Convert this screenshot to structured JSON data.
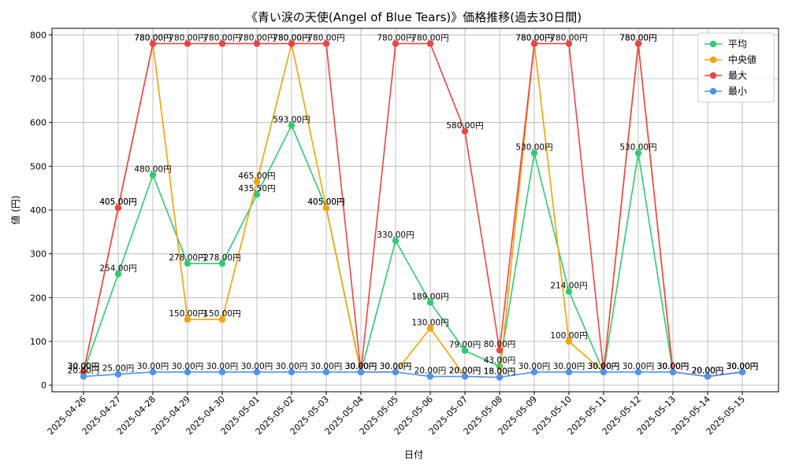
{
  "chart_data": {
    "type": "line",
    "title": "《青い涙の天使(Angel of Blue Tears)》価格推移(過去30日間)",
    "xlabel": "日付",
    "ylabel": "値 (円)",
    "ylim": [
      -15,
      815
    ],
    "yticks": [
      0,
      100,
      200,
      300,
      400,
      500,
      600,
      700,
      800
    ],
    "grid": true,
    "legend_position": "top-right",
    "label_suffix": "円",
    "categories": [
      "2025-04-26",
      "2025-04-27",
      "2025-04-28",
      "2025-04-29",
      "2025-04-30",
      "2025-05-01",
      "2025-05-02",
      "2025-05-03",
      "2025-05-04",
      "2025-05-05",
      "2025-05-06",
      "2025-05-07",
      "2025-05-08",
      "2025-05-09",
      "2025-05-10",
      "2025-05-11",
      "2025-05-12",
      "2025-05-13",
      "2025-05-14",
      "2025-05-15"
    ],
    "series": [
      {
        "name": "平均",
        "color": "#2ecc71",
        "values": [
          30,
          254,
          480,
          278,
          278,
          435.5,
          593,
          405,
          30,
          330,
          189,
          79,
          43,
          530,
          214,
          30,
          530,
          30,
          20,
          30
        ]
      },
      {
        "name": "中央値",
        "color": "#f5a300",
        "values": [
          30,
          405,
          780,
          150,
          150,
          465,
          780,
          405,
          30,
          30,
          130,
          20,
          18,
          780,
          100,
          30,
          780,
          30,
          20,
          30
        ]
      },
      {
        "name": "最大",
        "color": "#ef4444",
        "values": [
          30,
          405,
          780,
          780,
          780,
          780,
          780,
          780,
          30,
          780,
          780,
          580,
          80,
          780,
          780,
          30,
          780,
          30,
          20,
          30
        ]
      },
      {
        "name": "最小",
        "color": "#4f93f0",
        "values": [
          20,
          25,
          30,
          30,
          30,
          30,
          30,
          30,
          30,
          30,
          20,
          20,
          18,
          30,
          30,
          30,
          30,
          30,
          20,
          30
        ]
      }
    ]
  }
}
